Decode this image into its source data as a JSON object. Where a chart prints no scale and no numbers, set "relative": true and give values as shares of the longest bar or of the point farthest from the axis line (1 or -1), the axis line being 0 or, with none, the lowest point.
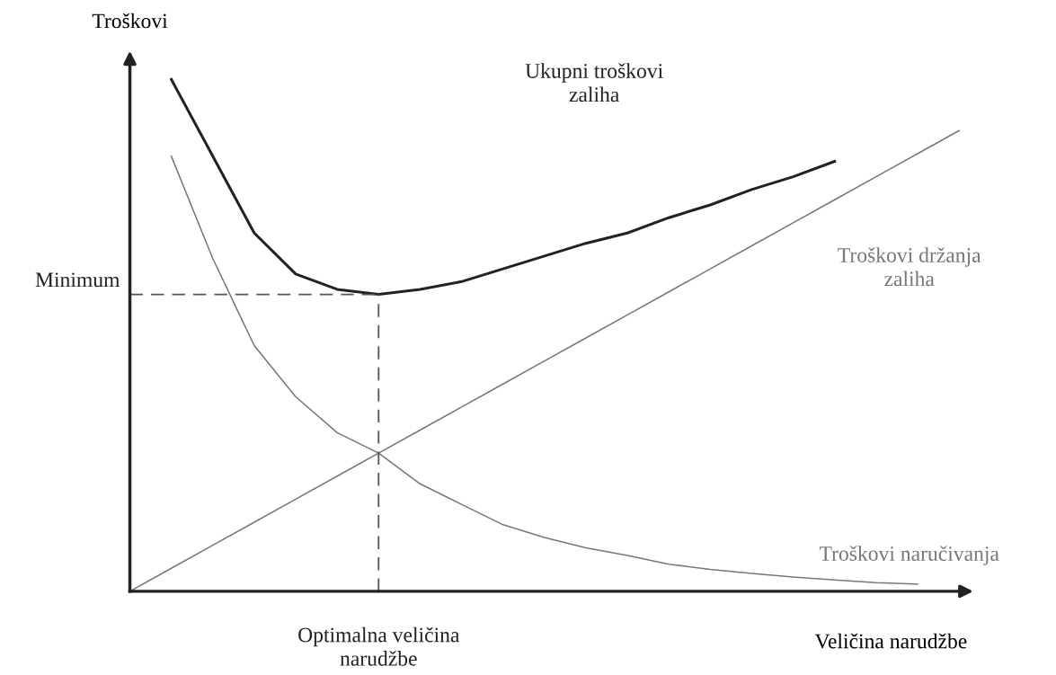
{
  "chart_data": {
    "type": "line",
    "relative": true,
    "ylabel": "Troškovi",
    "xlabel": "Veličina narudžbe",
    "categories": [
      null,
      null,
      null,
      null,
      null,
      null,
      null,
      null,
      null,
      null,
      null,
      null,
      null,
      null,
      null,
      null,
      null,
      null,
      null,
      null,
      null
    ],
    "series": [
      {
        "name": "Ukupni troškovi zaliha",
        "color": "#222222",
        "values": [
          null,
          1.0,
          0.85,
          0.7,
          0.62,
          0.59,
          0.58,
          0.59,
          0.605,
          0.63,
          0.655,
          0.68,
          0.7,
          0.73,
          0.755,
          0.785,
          0.81,
          0.84,
          null,
          null,
          null
        ]
      },
      {
        "name": "Troškovi držanja zaliha",
        "color": "#777777",
        "values": [
          0,
          0.045,
          0.09,
          0.135,
          0.18,
          0.225,
          0.27,
          0.315,
          0.36,
          0.405,
          0.45,
          0.495,
          0.54,
          0.585,
          0.63,
          0.675,
          0.72,
          0.765,
          0.81,
          0.855,
          0.9
        ]
      },
      {
        "name": "Troškovi naručivanja",
        "color": "#777777",
        "values": [
          null,
          0.85,
          0.65,
          0.48,
          0.38,
          0.31,
          0.27,
          0.21,
          0.17,
          0.13,
          0.105,
          0.085,
          0.07,
          0.053,
          0.043,
          0.035,
          0.028,
          0.022,
          0.017,
          0.014,
          null
        ]
      }
    ],
    "ref_lines": [
      {
        "axis": "y",
        "value": 0.58,
        "label": "Minimum",
        "color": "#555555",
        "line_style": "dashed"
      }
    ],
    "annotations": [
      "Optimalna veličina narudžbe"
    ]
  }
}
